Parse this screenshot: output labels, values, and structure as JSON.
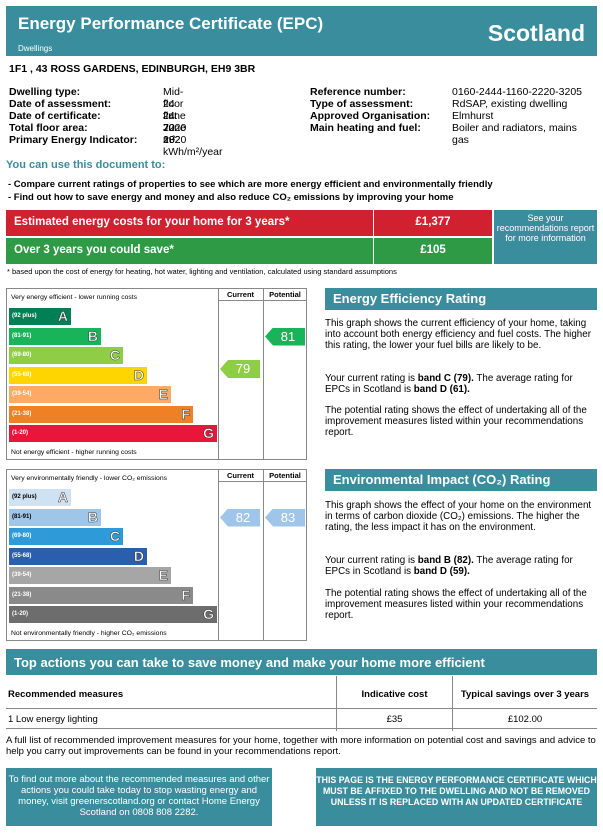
{
  "header": {
    "title": "Energy Performance Certificate (EPC)",
    "subtitle": "Dwellings",
    "country": "Scotland"
  },
  "address": "1F1 , 43 ROSS GARDENS, EDINBURGH, EH9 3BR",
  "details_left": [
    {
      "label": "Dwelling type:",
      "value": "Mid-floor flat"
    },
    {
      "label": "Date of assessment:",
      "value": "24 June 2020"
    },
    {
      "label": "Date of certificate:",
      "value": "24 June 2020"
    },
    {
      "label": "Total floor area:",
      "value": "72 m²"
    },
    {
      "label": "Primary Energy Indicator:",
      "value": "132 kWh/m²/year"
    }
  ],
  "details_right": [
    {
      "label": "Reference number:",
      "value": "0160-2444-1160-2220-3205"
    },
    {
      "label": "Type of assessment:",
      "value": "RdSAP, existing dwelling"
    },
    {
      "label": "Approved Organisation:",
      "value": "Elmhurst"
    },
    {
      "label": "Main heating and fuel:",
      "value": "Boiler and radiators, mains"
    },
    {
      "label": "",
      "value": "gas"
    }
  ],
  "use": {
    "title": "You can use this document to:",
    "items": [
      "-  Compare current ratings of properties to see which are more energy efficient and environmentally friendly",
      "-  Find out how to save energy and money and also reduce CO₂ emissions by improving your home"
    ]
  },
  "costs": {
    "row1_label": "Estimated energy costs for your home for 3 years*",
    "row1_value": "£1,377",
    "row2_label": "Over 3 years you could save*",
    "row2_value": "£105",
    "see_recs": "See your recommendations report for more information",
    "footnote": "* based upon the cost of energy for heating, hot water, lighting and ventilation, calculated using standard assumptions"
  },
  "eer": {
    "top_note": "Very energy efficient - lower running costs",
    "bottom_note": "Not energy efficient - higher running costs",
    "col_current": "Current",
    "col_potential": "Potential",
    "bands": [
      {
        "range": "(92 plus)",
        "letter": "A",
        "color": "#008054"
      },
      {
        "range": "(81-91)",
        "letter": "B",
        "color": "#19b459"
      },
      {
        "range": "(69-80)",
        "letter": "C",
        "color": "#8dce46"
      },
      {
        "range": "(55-68)",
        "letter": "D",
        "color": "#ffd500"
      },
      {
        "range": "(39-54)",
        "letter": "E",
        "color": "#fcaa65"
      },
      {
        "range": "(21-38)",
        "letter": "F",
        "color": "#ef8023"
      },
      {
        "range": "(1-20)",
        "letter": "G",
        "color": "#e9153b"
      }
    ],
    "current": "79",
    "potential": "81",
    "current_color": "#8dce46",
    "potential_color": "#19b459"
  },
  "eir": {
    "top_note": "Very environmentally friendly - lower CO₂ emissions",
    "bottom_note": "Not environmentally friendly - higher CO₂ emissions",
    "col_current": "Current",
    "col_potential": "Potential",
    "bands": [
      {
        "range": "(92 plus)",
        "letter": "A",
        "color": "#cfe2f3"
      },
      {
        "range": "(81-91)",
        "letter": "B",
        "color": "#9fc5e8"
      },
      {
        "range": "(69-80)",
        "letter": "C",
        "color": "#2e9ad8"
      },
      {
        "range": "(55-68)",
        "letter": "D",
        "color": "#2b5fae"
      },
      {
        "range": "(39-54)",
        "letter": "E",
        "color": "#a6a6a6"
      },
      {
        "range": "(21-38)",
        "letter": "F",
        "color": "#8a8a8a"
      },
      {
        "range": "(1-20)",
        "letter": "G",
        "color": "#6d6d6d"
      }
    ],
    "current": "82",
    "potential": "83",
    "current_color": "#9fc5e8",
    "potential_color": "#9fc5e8"
  },
  "eer_panel": {
    "title": "Energy Efficiency Rating",
    "p1": "This graph shows the current efficiency of your home, taking into account both energy efficiency and fuel costs. The higher this rating, the lower your fuel bills are likely to be.",
    "p2a": "Your current rating is ",
    "p2b": "band C (79).",
    "p2c": " The average rating for EPCs in Scotland is ",
    "p2d": "band D (61).",
    "p3": "The potential rating shows the effect of undertaking all of the improvement measures listed within your recommendations report."
  },
  "eir_panel": {
    "title": "Environmental Impact (CO₂) Rating",
    "p1": "This graph shows the effect of your home on the environment in terms of carbon dioxide (CO₂) emissions. The higher the rating, the less impact it has on the environment.",
    "p2a": "Your current rating is ",
    "p2b": "band B (82).",
    "p2c": " The average rating for EPCs in Scotland is ",
    "p2d": "band D (59).",
    "p3": "The potential rating shows the effect of undertaking all of the improvement measures listed within your recommendations report."
  },
  "actions": {
    "title": "Top actions you can take to save money and make your home more efficient",
    "headers": [
      "Recommended measures",
      "Indicative cost",
      "Typical savings over 3 years"
    ],
    "rows": [
      {
        "measure": "1 Low energy lighting",
        "cost": "£35",
        "saving": "£102.00"
      }
    ]
  },
  "footer": {
    "full_list": "A full list of recommended improvement measures for your home, together with more information on potential cost and savings and advice to help you carry out improvements can be found in your recommendations report.",
    "find_out": "To find out more about the recommended measures and other actions you could take today to stop wasting energy and money, visit greenerscotland.org or contact Home Energy Scotland on 0808 808 2282.",
    "affixed": "THIS PAGE IS THE ENERGY PERFORMANCE CERTIFICATE WHICH MUST BE AFFIXED TO THE DWELLING AND NOT BE REMOVED UNLESS IT IS REPLACED WITH AN UPDATED CERTIFICATE"
  }
}
